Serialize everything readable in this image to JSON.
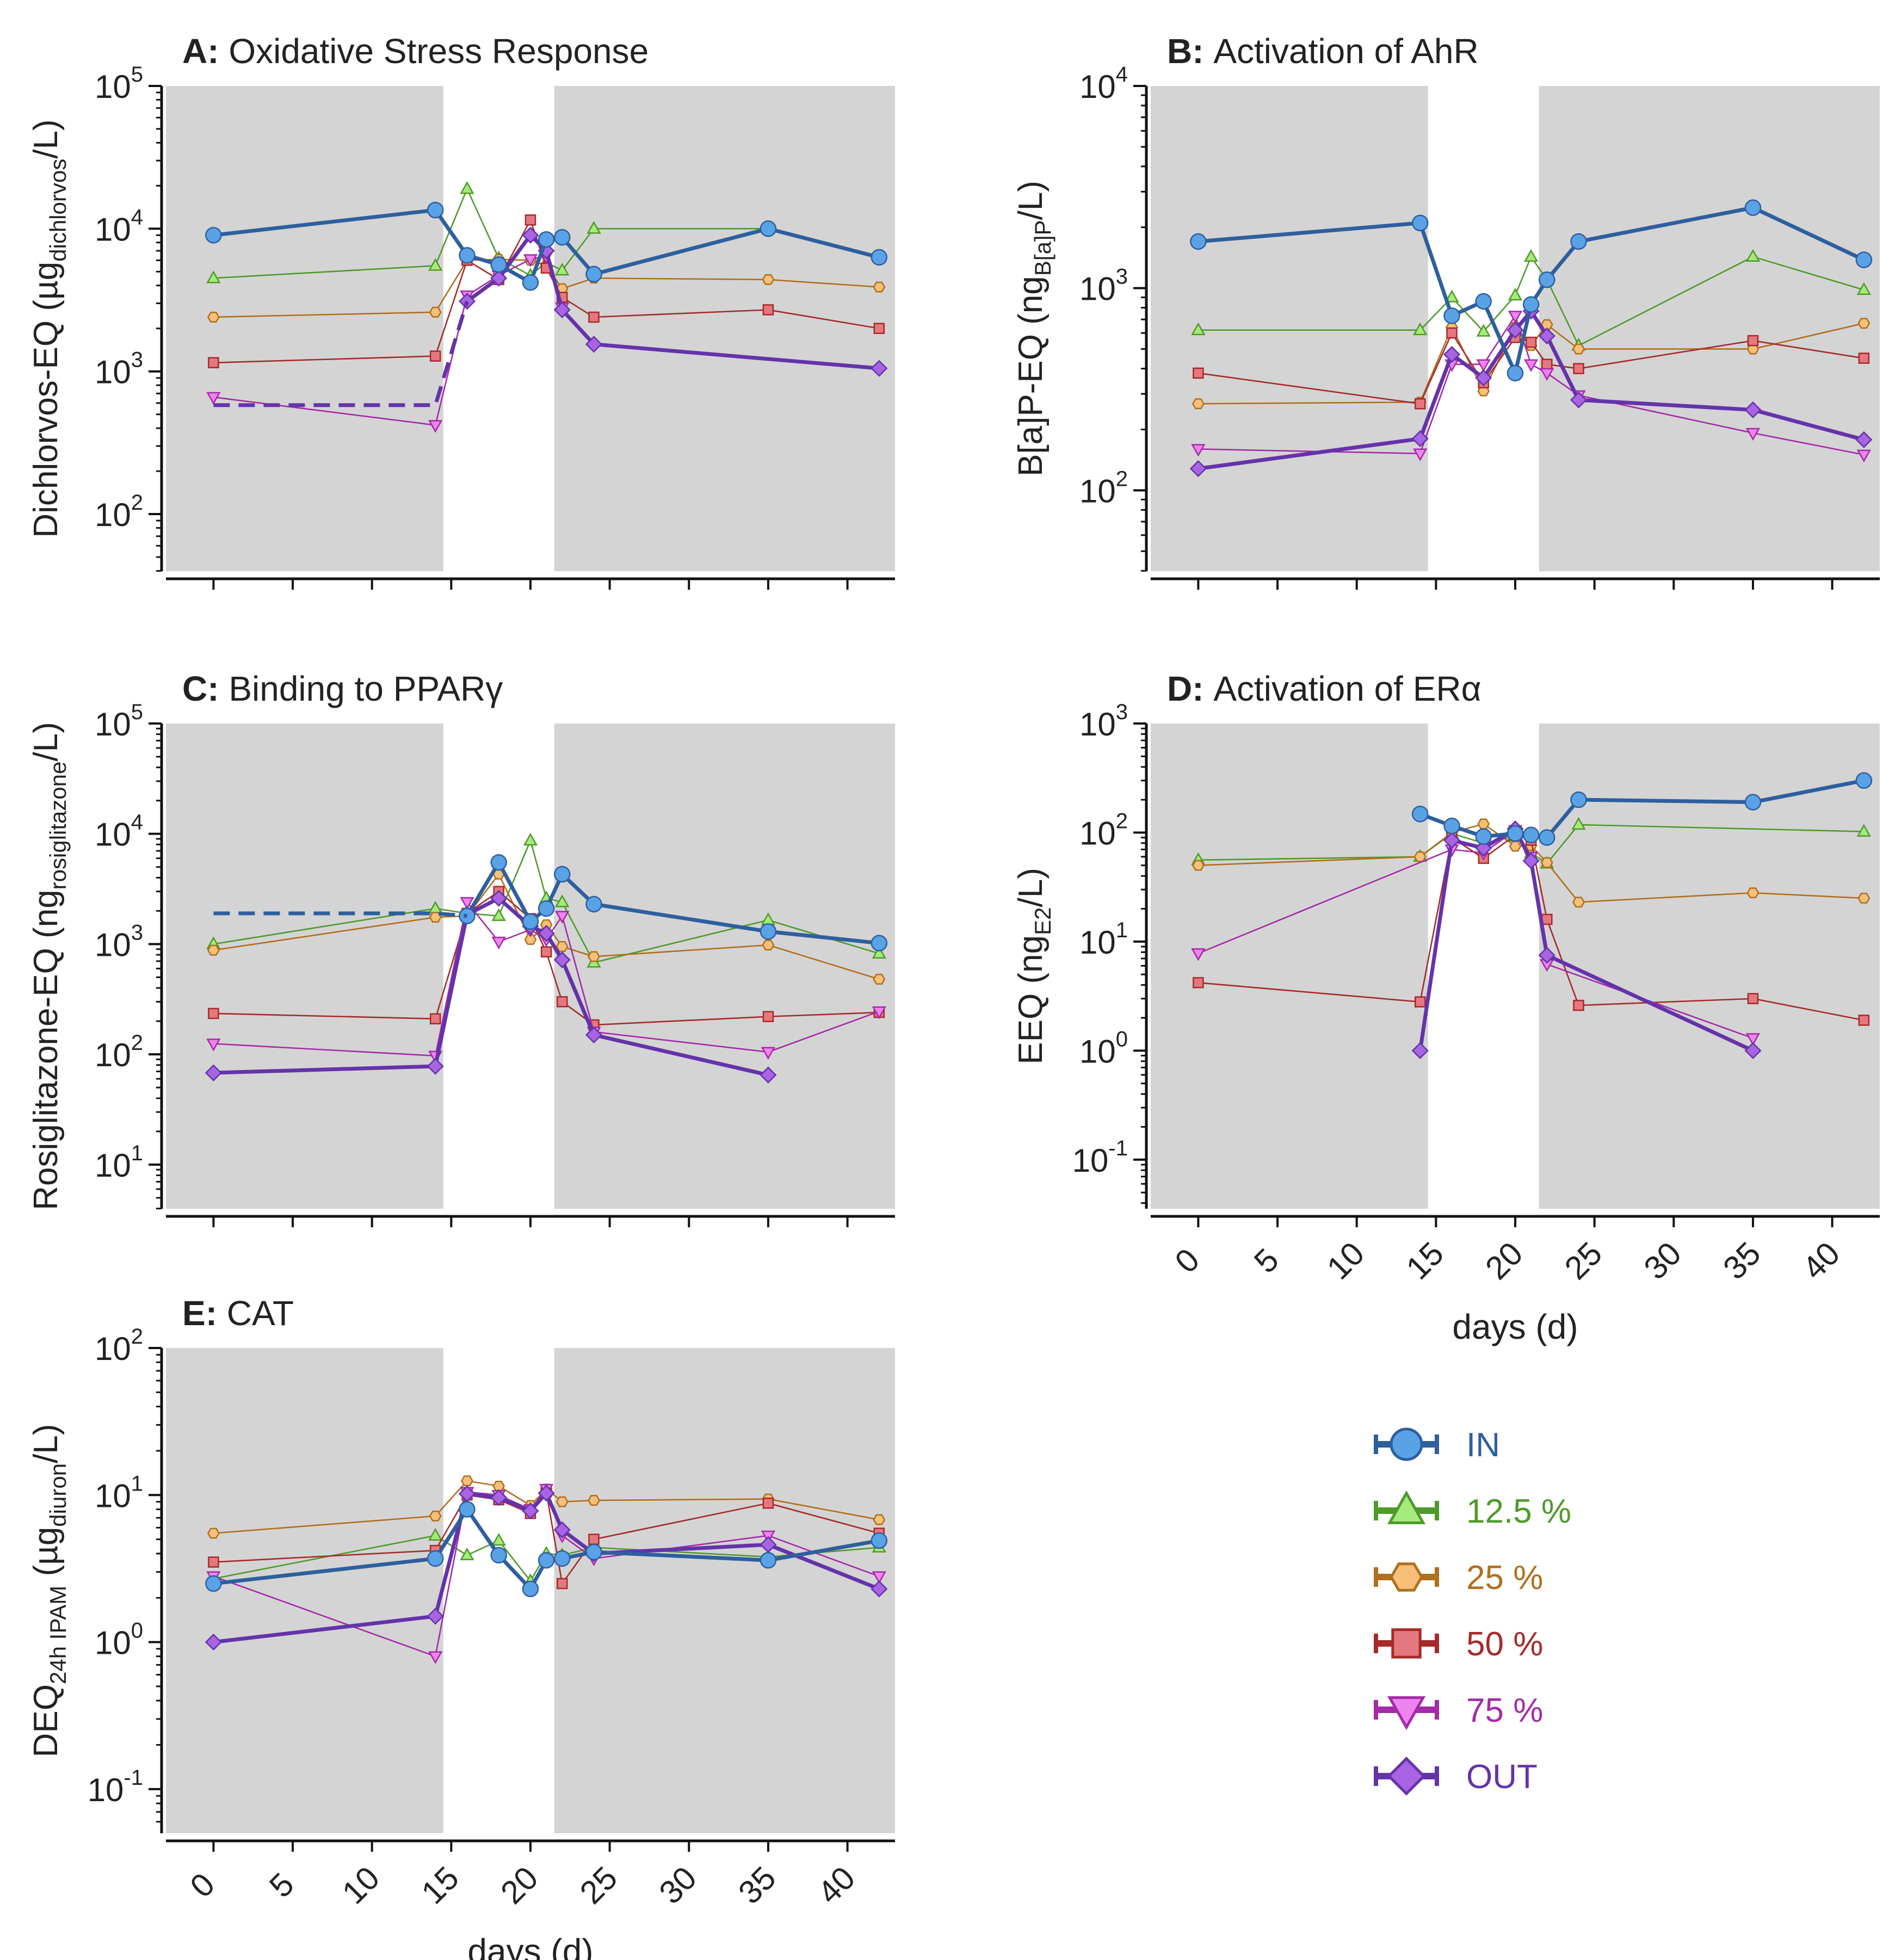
{
  "colors": {
    "background": "#d4d4d4",
    "axis": "#111111",
    "IN": {
      "line": "#2e5f9e",
      "fill": "#5aa2e6"
    },
    "12.5 %": {
      "line": "#4f9a2a",
      "fill": "#a6ea7c"
    },
    "25 %": {
      "line": "#b06f1c",
      "fill": "#f6c07a"
    },
    "50 %": {
      "line": "#a62a2a",
      "fill": "#e5787e"
    },
    "75 %": {
      "line": "#a42aa8",
      "fill": "#ee84ee"
    },
    "OUT": {
      "line": "#6433aa",
      "fill": "#a864e2"
    }
  },
  "x_label": "days (d)",
  "x_ticks": [
    "0",
    "5",
    "10",
    "15",
    "20",
    "25",
    "30",
    "35",
    "40"
  ],
  "legend": [
    {
      "label": "IN",
      "marker": "circle"
    },
    {
      "label": "12.5 %",
      "marker": "triangle-up"
    },
    {
      "label": "25 %",
      "marker": "hexagon"
    },
    {
      "label": "50 %",
      "marker": "square"
    },
    {
      "label": "75 %",
      "marker": "triangle-down"
    },
    {
      "label": "OUT",
      "marker": "diamond"
    }
  ],
  "chart_data": [
    {
      "type": "line",
      "panel": "A",
      "title_letter": "A:",
      "title": "Oxidative Stress Response",
      "ylabel": "Dichlorvos-EQ (µg",
      "ylabel_sub": "dichlorvos",
      "ylabel_end": "/L)",
      "yscale": "log",
      "ylim_exp": [
        1.6,
        5
      ],
      "y_tick_exps": [
        "2",
        "3",
        "4",
        "5"
      ],
      "shaded_days": [
        [
          -3,
          14.5
        ],
        [
          21.5,
          43
        ]
      ],
      "x_range": [
        -3,
        43
      ],
      "series": [
        {
          "name": "IN",
          "x": [
            0,
            14,
            16,
            18,
            20,
            21,
            22,
            24,
            35,
            42
          ],
          "y": [
            9000,
            13500,
            6500,
            5600,
            4200,
            8400,
            8700,
            4800,
            10000,
            6300
          ]
        },
        {
          "name": "12.5 %",
          "x": [
            0,
            14,
            16,
            18,
            20,
            21,
            22,
            24,
            35
          ],
          "y": [
            4500,
            5500,
            19000,
            6200,
            4700,
            5800,
            5100,
            10000,
            10000
          ]
        },
        {
          "name": "25 %",
          "x": [
            0,
            14,
            16,
            18,
            20,
            21,
            22,
            24,
            35,
            42
          ],
          "y": [
            2400,
            2600,
            6000,
            6100,
            6000,
            5500,
            3800,
            4500,
            4400,
            3900
          ]
        },
        {
          "name": "50 %",
          "x": [
            0,
            14,
            16,
            18,
            20,
            21,
            22,
            24,
            35,
            42
          ],
          "y": [
            1150,
            1280,
            6000,
            4400,
            11500,
            5300,
            3300,
            2400,
            2700,
            2000
          ]
        },
        {
          "name": "75 %",
          "x": [
            0,
            14,
            16,
            18,
            20,
            21,
            22
          ],
          "y": [
            660,
            420,
            3400,
            4700,
            6100,
            6400,
            2800
          ]
        },
        {
          "name": "OUT",
          "x": [
            14,
            16,
            18,
            20,
            21,
            22,
            24,
            42
          ],
          "y": [
            null,
            3100,
            4500,
            9000,
            7000,
            2700,
            1550,
            1050
          ]
        },
        {
          "name": "OUT-lod",
          "dashed": true,
          "x": [
            0,
            14,
            16
          ],
          "y": [
            580,
            580,
            3100
          ]
        }
      ]
    },
    {
      "type": "line",
      "panel": "B",
      "title_letter": "B:",
      "title": "Activation of AhR",
      "ylabel": "B[a]P-EQ (ng",
      "ylabel_sub": "B[a]P",
      "ylabel_end": "/L)",
      "yscale": "log",
      "ylim_exp": [
        1.6,
        4
      ],
      "y_tick_exps": [
        "2",
        "3",
        "4"
      ],
      "shaded_days": [
        [
          -3,
          14.5
        ],
        [
          21.5,
          43
        ]
      ],
      "x_range": [
        -3,
        43
      ],
      "series": [
        {
          "name": "IN",
          "x": [
            0,
            14,
            16,
            18,
            20,
            21,
            22,
            24,
            35,
            42
          ],
          "y": [
            1700,
            2100,
            730,
            860,
            380,
            830,
            1100,
            1700,
            2500,
            1380
          ]
        },
        {
          "name": "12.5 %",
          "x": [
            0,
            14,
            16,
            18,
            20,
            21,
            22,
            24,
            35,
            42
          ],
          "y": [
            620,
            620,
            900,
            610,
            920,
            1430,
            1100,
            520,
            1430,
            980
          ]
        },
        {
          "name": "25 %",
          "x": [
            0,
            14,
            16,
            18,
            20,
            21,
            22,
            24,
            35,
            42
          ],
          "y": [
            268,
            273,
            640,
            310,
            640,
            520,
            660,
            500,
            500,
            670
          ]
        },
        {
          "name": "50 %",
          "x": [
            0,
            14,
            16,
            18,
            20,
            21,
            22,
            24,
            35,
            42
          ],
          "y": [
            380,
            268,
            600,
            340,
            570,
            540,
            420,
            400,
            550,
            450
          ]
        },
        {
          "name": "75 %",
          "x": [
            0,
            14,
            16,
            18,
            20,
            21,
            22,
            24,
            35,
            42
          ],
          "y": [
            160,
            152,
            420,
            420,
            730,
            420,
            380,
            295,
            192,
            150
          ]
        },
        {
          "name": "OUT",
          "x": [
            0,
            14,
            16,
            18,
            20,
            21,
            22,
            24,
            35,
            42
          ],
          "y": [
            128,
            180,
            470,
            360,
            620,
            770,
            580,
            280,
            250,
            178
          ]
        }
      ]
    },
    {
      "type": "line",
      "panel": "C",
      "title_letter": "C:",
      "title": "Binding to PPARγ",
      "ylabel": "Rosiglitazone-EQ (ng",
      "ylabel_sub": "rosiglitazone",
      "ylabel_end": "/L)",
      "yscale": "log",
      "ylim_exp": [
        0.6,
        5
      ],
      "y_tick_exps": [
        "1",
        "2",
        "3",
        "4",
        "5"
      ],
      "shaded_days": [
        [
          -3,
          14.5
        ],
        [
          21.5,
          43
        ]
      ],
      "x_range": [
        -3,
        43
      ],
      "series": [
        {
          "name": "IN",
          "x": [
            16,
            18,
            20,
            21,
            22,
            24,
            35,
            42
          ],
          "y": [
            1800,
            5500,
            1600,
            2100,
            4300,
            2300,
            1300,
            1020
          ]
        },
        {
          "name": "IN-lod",
          "dashed": true,
          "x": [
            0,
            14,
            16
          ],
          "y": [
            1900,
            1900,
            1800
          ]
        },
        {
          "name": "12.5 %",
          "x": [
            0,
            14,
            16,
            18,
            20,
            21,
            22,
            24,
            35,
            42
          ],
          "y": [
            1000,
            2100,
            1900,
            1800,
            8700,
            2600,
            2400,
            680,
            1650,
            820
          ]
        },
        {
          "name": "25 %",
          "x": [
            0,
            14,
            16,
            18,
            20,
            21,
            22,
            24,
            35,
            42
          ],
          "y": [
            880,
            1750,
            1800,
            4300,
            1100,
            1500,
            950,
            770,
            980,
            480
          ]
        },
        {
          "name": "50 %",
          "x": [
            0,
            14,
            16,
            18,
            20,
            21,
            22,
            24,
            35,
            42
          ],
          "y": [
            235,
            210,
            1900,
            3000,
            1700,
            850,
            300,
            185,
            220,
            240
          ]
        },
        {
          "name": "75 %",
          "x": [
            0,
            14,
            16,
            18,
            20,
            21,
            22,
            24,
            35,
            42
          ],
          "y": [
            125,
            97,
            2400,
            1050,
            1350,
            1100,
            1800,
            160,
            105,
            245
          ]
        },
        {
          "name": "OUT",
          "x": [
            0,
            14,
            16,
            18,
            20,
            21,
            22,
            24,
            35
          ],
          "y": [
            68,
            78,
            1850,
            2600,
            1450,
            1250,
            720,
            150,
            65
          ]
        }
      ]
    },
    {
      "type": "line",
      "panel": "D",
      "title_letter": "D:",
      "title": "Activation of ERα",
      "ylabel": "EEQ (ng",
      "ylabel_sub": "E2",
      "ylabel_end": "/L)",
      "yscale": "log",
      "ylim_exp": [
        -1.45,
        3
      ],
      "y_tick_exps": [
        "-1",
        "0",
        "1",
        "2",
        "3"
      ],
      "shaded_days": [
        [
          -3,
          14.5
        ],
        [
          21.5,
          43
        ]
      ],
      "x_range": [
        -3,
        43
      ],
      "series": [
        {
          "name": "IN",
          "x": [
            14,
            16,
            18,
            20,
            21,
            22,
            24,
            35,
            42
          ],
          "y": [
            148,
            115,
            92,
            98,
            95,
            90,
            200,
            190,
            300
          ]
        },
        {
          "name": "12.5 %",
          "x": [
            0,
            14,
            16,
            18,
            20,
            21,
            22,
            24,
            42
          ],
          "y": [
            56,
            60,
            98,
            80,
            92,
            65,
            52,
            118,
            102
          ]
        },
        {
          "name": "25 %",
          "x": [
            0,
            14,
            16,
            18,
            20,
            21,
            22,
            24,
            35,
            42
          ],
          "y": [
            50,
            60,
            100,
            120,
            75,
            76,
            53,
            23,
            28,
            25
          ]
        },
        {
          "name": "50 %",
          "x": [
            0,
            14,
            16,
            18,
            20,
            21,
            22,
            24,
            35,
            42
          ],
          "y": [
            4.2,
            2.8,
            90,
            58,
            95,
            85,
            16,
            2.6,
            3.0,
            1.9
          ]
        },
        {
          "name": "75 %",
          "x": [
            0,
            16,
            18,
            20,
            21,
            22,
            35
          ],
          "y": [
            7.8,
            70,
            65,
            105,
            60,
            6.2,
            1.3
          ]
        },
        {
          "name": "OUT",
          "x": [
            14,
            16,
            18,
            20,
            21,
            22,
            35
          ],
          "y": [
            1.0,
            85,
            72,
            108,
            55,
            7.5,
            1.0
          ]
        }
      ]
    },
    {
      "type": "line",
      "panel": "E",
      "title_letter": "E:",
      "title": "CAT",
      "ylabel": "DEQ",
      "ylabel_sub": "24h IPAM",
      "ylabel_mid": " (µg",
      "ylabel_sub2": "diuron",
      "ylabel_end": "/L)",
      "yscale": "log",
      "ylim_exp": [
        -1.3,
        2
      ],
      "y_tick_exps": [
        "-1",
        "0",
        "1",
        "2"
      ],
      "shaded_days": [
        [
          -3,
          14.5
        ],
        [
          21.5,
          43
        ]
      ],
      "x_range": [
        -3,
        43
      ],
      "series": [
        {
          "name": "IN",
          "x": [
            0,
            14,
            16,
            18,
            20,
            21,
            22,
            24,
            35,
            42
          ],
          "y": [
            2.5,
            3.7,
            8.0,
            3.9,
            2.3,
            3.6,
            3.7,
            4.1,
            3.6,
            4.9
          ]
        },
        {
          "name": "12.5 %",
          "x": [
            0,
            14,
            16,
            18,
            20,
            21,
            22,
            24,
            35,
            42
          ],
          "y": [
            2.7,
            5.3,
            3.9,
            4.9,
            2.6,
            4.0,
            3.9,
            4.4,
            3.8,
            4.4
          ]
        },
        {
          "name": "25 %",
          "x": [
            0,
            14,
            16,
            18,
            20,
            21,
            22,
            24,
            35,
            42
          ],
          "y": [
            5.5,
            7.2,
            12.5,
            11.5,
            8.5,
            11.0,
            9.0,
            9.2,
            9.4,
            6.8
          ]
        },
        {
          "name": "50 %",
          "x": [
            0,
            14,
            16,
            18,
            20,
            21,
            22,
            24,
            35,
            42
          ],
          "y": [
            3.5,
            4.2,
            10.0,
            9.3,
            7.5,
            10.5,
            2.5,
            5.0,
            8.8,
            5.5
          ]
        },
        {
          "name": "75 %",
          "x": [
            0,
            14,
            16,
            18,
            20,
            21,
            22,
            24,
            35,
            42
          ],
          "y": [
            2.8,
            0.8,
            10.5,
            10.0,
            8.0,
            11.0,
            5.3,
            3.7,
            5.3,
            2.8
          ]
        },
        {
          "name": "OUT",
          "x": [
            0,
            14,
            16,
            18,
            20,
            21,
            22,
            24,
            35,
            42
          ],
          "y": [
            1.0,
            1.5,
            10.2,
            9.6,
            7.8,
            10.3,
            5.8,
            4.0,
            4.6,
            2.3
          ]
        }
      ]
    }
  ]
}
